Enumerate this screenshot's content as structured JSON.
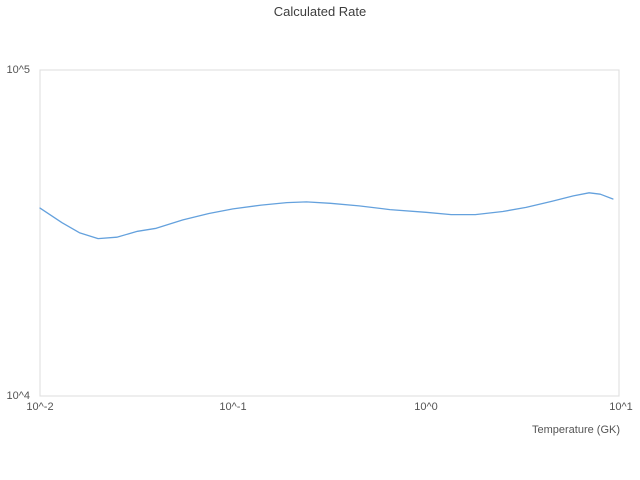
{
  "title": "Calculated Rate",
  "axes": {
    "x_label": "Temperature (GK)",
    "x_ticks": [
      "10^-2",
      "10^-1",
      "10^0",
      "10^1"
    ],
    "y_ticks": [
      "10^4",
      "10^5"
    ]
  },
  "colors": {
    "background": "#ffffff",
    "line": "#64a1dd",
    "frame": "#dddddd",
    "title_text": "#3d3d3d",
    "tick_text": "#545454"
  },
  "chart_data": {
    "type": "line",
    "title": "Calculated Rate",
    "xlabel": "Temperature (GK)",
    "ylabel": "",
    "x_scale": "log",
    "y_scale": "log",
    "xlim": [
      0.01,
      10
    ],
    "ylim": [
      10000,
      100000
    ],
    "grid": false,
    "legend": false,
    "series": [
      {
        "name": "calculated-rate",
        "x": [
          0.01,
          0.013,
          0.016,
          0.02,
          0.025,
          0.032,
          0.04,
          0.055,
          0.075,
          0.1,
          0.14,
          0.19,
          0.24,
          0.32,
          0.45,
          0.65,
          1.0,
          1.35,
          1.8,
          2.5,
          3.3,
          4.5,
          5.8,
          7.0,
          8.0,
          9.3
        ],
        "y": [
          37700,
          34000,
          31700,
          30400,
          30700,
          32000,
          32700,
          34700,
          36300,
          37500,
          38500,
          39200,
          39400,
          39000,
          38300,
          37300,
          36600,
          36000,
          36000,
          36800,
          37900,
          39600,
          41100,
          42000,
          41600,
          40200
        ]
      }
    ]
  }
}
